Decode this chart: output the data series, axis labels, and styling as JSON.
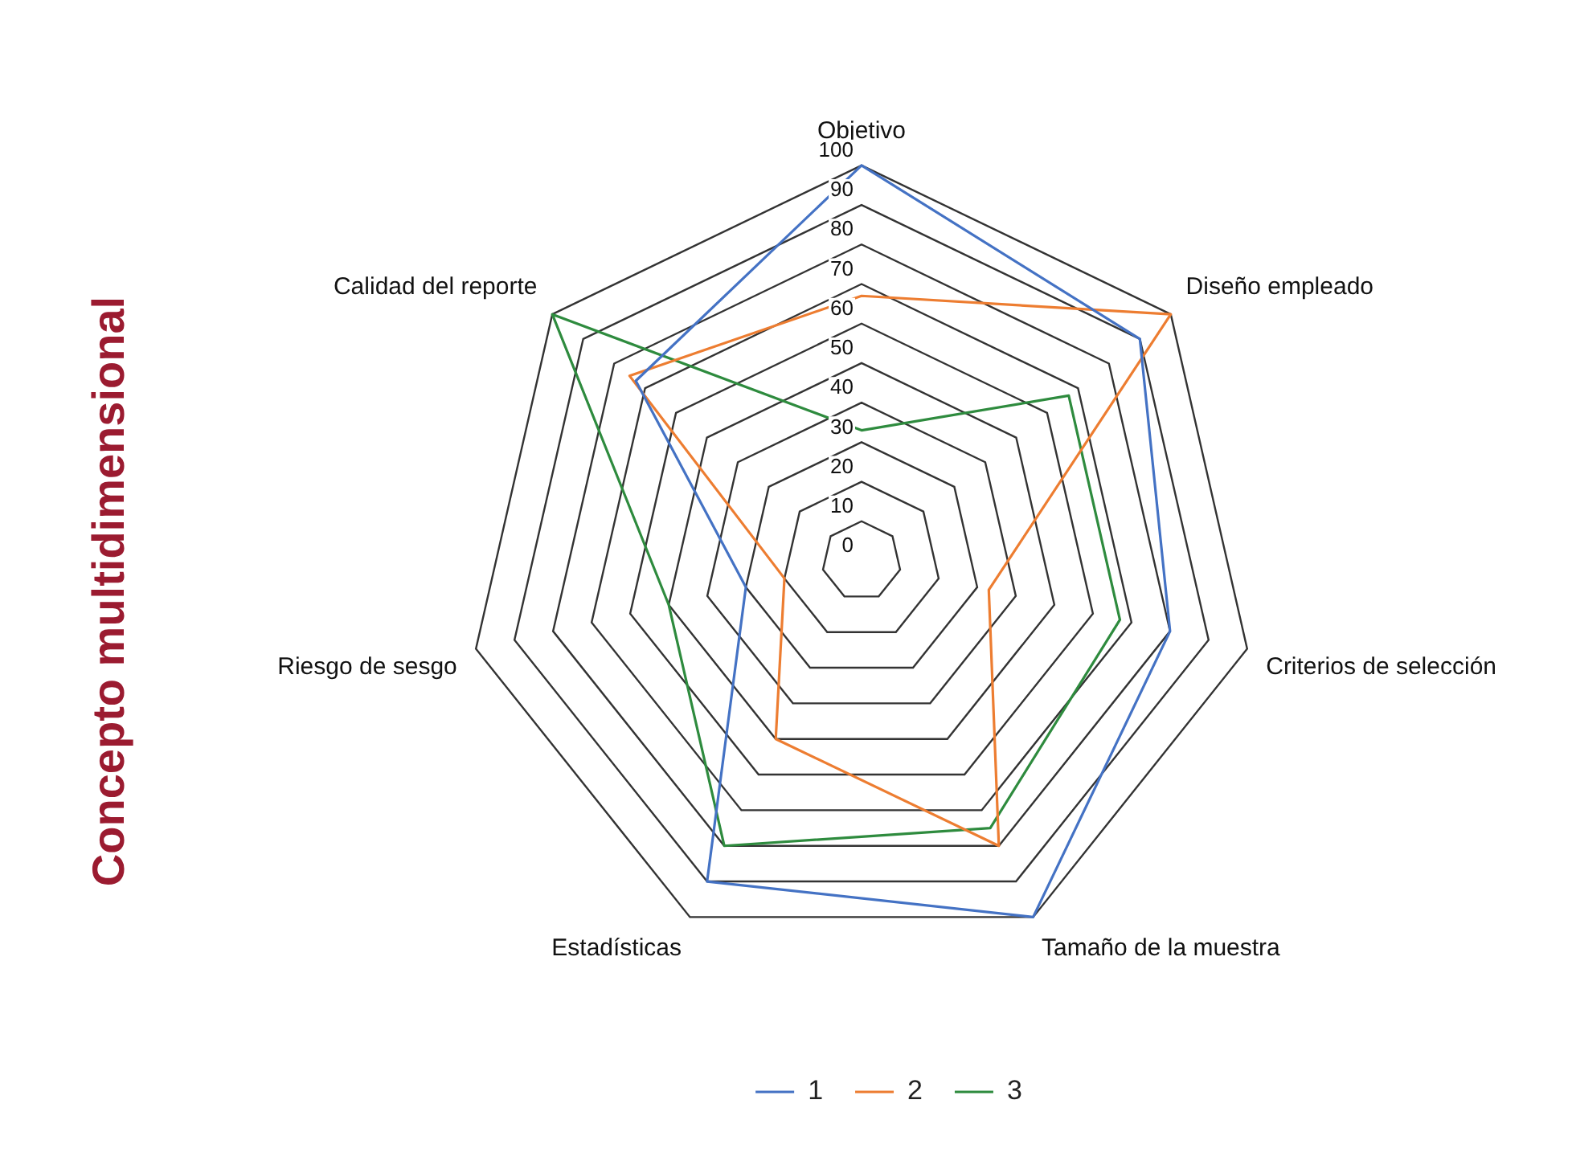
{
  "chart_data": {
    "type": "radar",
    "ylabel": "Concepto multidimensional",
    "categories": [
      "Objetivo",
      "Diseño empleado",
      "Criterios de selección",
      "Tamaño de la muestra",
      "Estadísticas",
      "Riesgo de sesgo",
      "Calidad del reporte"
    ],
    "series": [
      {
        "name": "1",
        "color": "#4472c4",
        "values": [
          100,
          90,
          80,
          100,
          90,
          30,
          73
        ]
      },
      {
        "name": "2",
        "color": "#ed7d31",
        "values": [
          67,
          100,
          33,
          80,
          50,
          20,
          75
        ]
      },
      {
        "name": "3",
        "color": "#2e8b3e",
        "values": [
          33,
          67,
          67,
          75,
          80,
          50,
          100
        ]
      }
    ],
    "ylim": [
      0,
      100
    ],
    "yticks": [
      0,
      10,
      20,
      30,
      40,
      50,
      60,
      70,
      80,
      90,
      100
    ],
    "grid": true,
    "legend": "bottom",
    "marker": "none",
    "line_style": "solid"
  }
}
